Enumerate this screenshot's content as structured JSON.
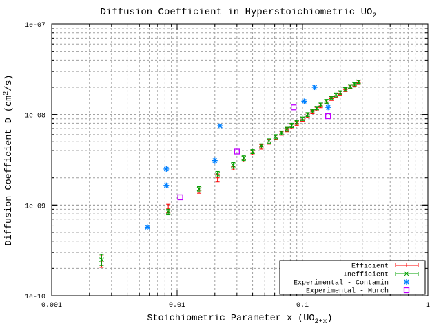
{
  "chart_data": {
    "type": "scatter",
    "title": "Diffusion Coefficient in Hyperstoichiometric UO2",
    "title_parts": {
      "main": "Diffusion Coefficient in Hyperstoichiometric UO",
      "sub": "2"
    },
    "xlabel": "Stoichiometric Parameter x  (UO2+x)",
    "xlabel_parts": {
      "main": "Stoichiometric Parameter x  (UO",
      "sub": "2+x",
      "close": ")"
    },
    "ylabel": "Diffusion Coefficient D (cm2/s)",
    "ylabel_parts": {
      "main": "Diffusion Coefficient D (cm",
      "sup": "2",
      "close": "/s)"
    },
    "xscale": "log",
    "yscale": "log",
    "xlim": [
      0.001,
      1
    ],
    "ylim": [
      1e-10,
      1e-07
    ],
    "x_ticks": [
      "0.001",
      "0.01",
      "0.1",
      "1"
    ],
    "y_ticks": [
      "1e-10",
      "1e-09",
      "1e-08",
      "1e-07"
    ],
    "grid": true,
    "legend_position": "lower right",
    "legend": [
      {
        "label": "Efficient",
        "color": "#ff0000",
        "style": "errorbar"
      },
      {
        "label": "Inefficient",
        "color": "#00a000",
        "style": "errorbar-x"
      },
      {
        "label": "Experimental - Contamin",
        "color": "#0080ff",
        "style": "asterisk"
      },
      {
        "label": "Experimental - Murch",
        "color": "#c000ff",
        "style": "square"
      }
    ],
    "series": [
      {
        "name": "Efficient",
        "color": "#ff0000",
        "points": [
          [
            0.0025,
            2.4e-10,
            3.5e-11
          ],
          [
            0.0085,
            9.2e-10,
            1e-10
          ],
          [
            0.015,
            1.45e-09,
            1e-10
          ],
          [
            0.021,
            2e-09,
            2e-10
          ],
          [
            0.028,
            2.65e-09,
            2e-10
          ],
          [
            0.034,
            3.2e-09,
            2e-10
          ],
          [
            0.04,
            3.8e-09,
            2e-10
          ],
          [
            0.047,
            4.4e-09,
            2.5e-10
          ],
          [
            0.054,
            5e-09,
            3e-10
          ],
          [
            0.061,
            5.6e-09,
            3e-10
          ],
          [
            0.068,
            6.2e-09,
            3e-10
          ],
          [
            0.075,
            6.8e-09,
            3.5e-10
          ],
          [
            0.082,
            7.4e-09,
            4e-10
          ],
          [
            0.09,
            8e-09,
            4e-10
          ],
          [
            0.1,
            8.8e-09,
            4e-10
          ],
          [
            0.11,
            9.8e-09,
            5e-10
          ],
          [
            0.12,
            1.07e-08,
            5e-10
          ],
          [
            0.13,
            1.15e-08,
            5e-10
          ],
          [
            0.14,
            1.25e-08,
            6e-10
          ],
          [
            0.155,
            1.38e-08,
            7e-10
          ],
          [
            0.17,
            1.5e-08,
            7e-10
          ],
          [
            0.185,
            1.62e-08,
            8e-10
          ],
          [
            0.2,
            1.72e-08,
            8e-10
          ],
          [
            0.22,
            1.88e-08,
            9e-10
          ],
          [
            0.24,
            2.02e-08,
            9e-10
          ],
          [
            0.26,
            2.15e-08,
            1e-09
          ],
          [
            0.28,
            2.28e-08,
            1e-09
          ]
        ]
      },
      {
        "name": "Inefficient",
        "color": "#00a000",
        "points": [
          [
            0.0025,
            2.5e-10,
            3.5e-11
          ],
          [
            0.0085,
            8.4e-10,
            6e-11
          ],
          [
            0.015,
            1.5e-09,
            1e-10
          ],
          [
            0.021,
            2.2e-09,
            1.5e-10
          ],
          [
            0.028,
            2.75e-09,
            2e-10
          ],
          [
            0.034,
            3.3e-09,
            2e-10
          ],
          [
            0.04,
            3.9e-09,
            2e-10
          ],
          [
            0.047,
            4.5e-09,
            2.5e-10
          ],
          [
            0.054,
            5.1e-09,
            3e-10
          ],
          [
            0.061,
            5.7e-09,
            3e-10
          ],
          [
            0.068,
            6.3e-09,
            3e-10
          ],
          [
            0.075,
            6.9e-09,
            3.5e-10
          ],
          [
            0.082,
            7.6e-09,
            4e-10
          ],
          [
            0.09,
            8.2e-09,
            4e-10
          ],
          [
            0.1,
            9e-09,
            4e-10
          ],
          [
            0.11,
            1e-08,
            5e-10
          ],
          [
            0.12,
            1.09e-08,
            5e-10
          ],
          [
            0.13,
            1.18e-08,
            5e-10
          ],
          [
            0.14,
            1.28e-08,
            6e-10
          ],
          [
            0.155,
            1.4e-08,
            7e-10
          ],
          [
            0.17,
            1.52e-08,
            7e-10
          ],
          [
            0.185,
            1.65e-08,
            8e-10
          ],
          [
            0.2,
            1.75e-08,
            8e-10
          ],
          [
            0.22,
            1.9e-08,
            9e-10
          ],
          [
            0.24,
            2.05e-08,
            9e-10
          ],
          [
            0.26,
            2.18e-08,
            1e-09
          ],
          [
            0.28,
            2.3e-08,
            1e-09
          ]
        ]
      },
      {
        "name": "Experimental - Contamin",
        "color": "#0080ff",
        "points": [
          [
            0.0058,
            5.7e-10
          ],
          [
            0.0082,
            1.65e-09
          ],
          [
            0.0082,
            2.5e-09
          ],
          [
            0.02,
            3.1e-09
          ],
          [
            0.022,
            7.5e-09
          ],
          [
            0.103,
            1.4e-08
          ],
          [
            0.125,
            2e-08
          ],
          [
            0.16,
            1.2e-08
          ]
        ]
      },
      {
        "name": "Experimental - Murch",
        "color": "#c000ff",
        "points": [
          [
            0.0106,
            1.22e-09
          ],
          [
            0.03,
            3.9e-09
          ],
          [
            0.085,
            1.2e-08
          ],
          [
            0.16,
            9.6e-09
          ]
        ]
      }
    ]
  }
}
